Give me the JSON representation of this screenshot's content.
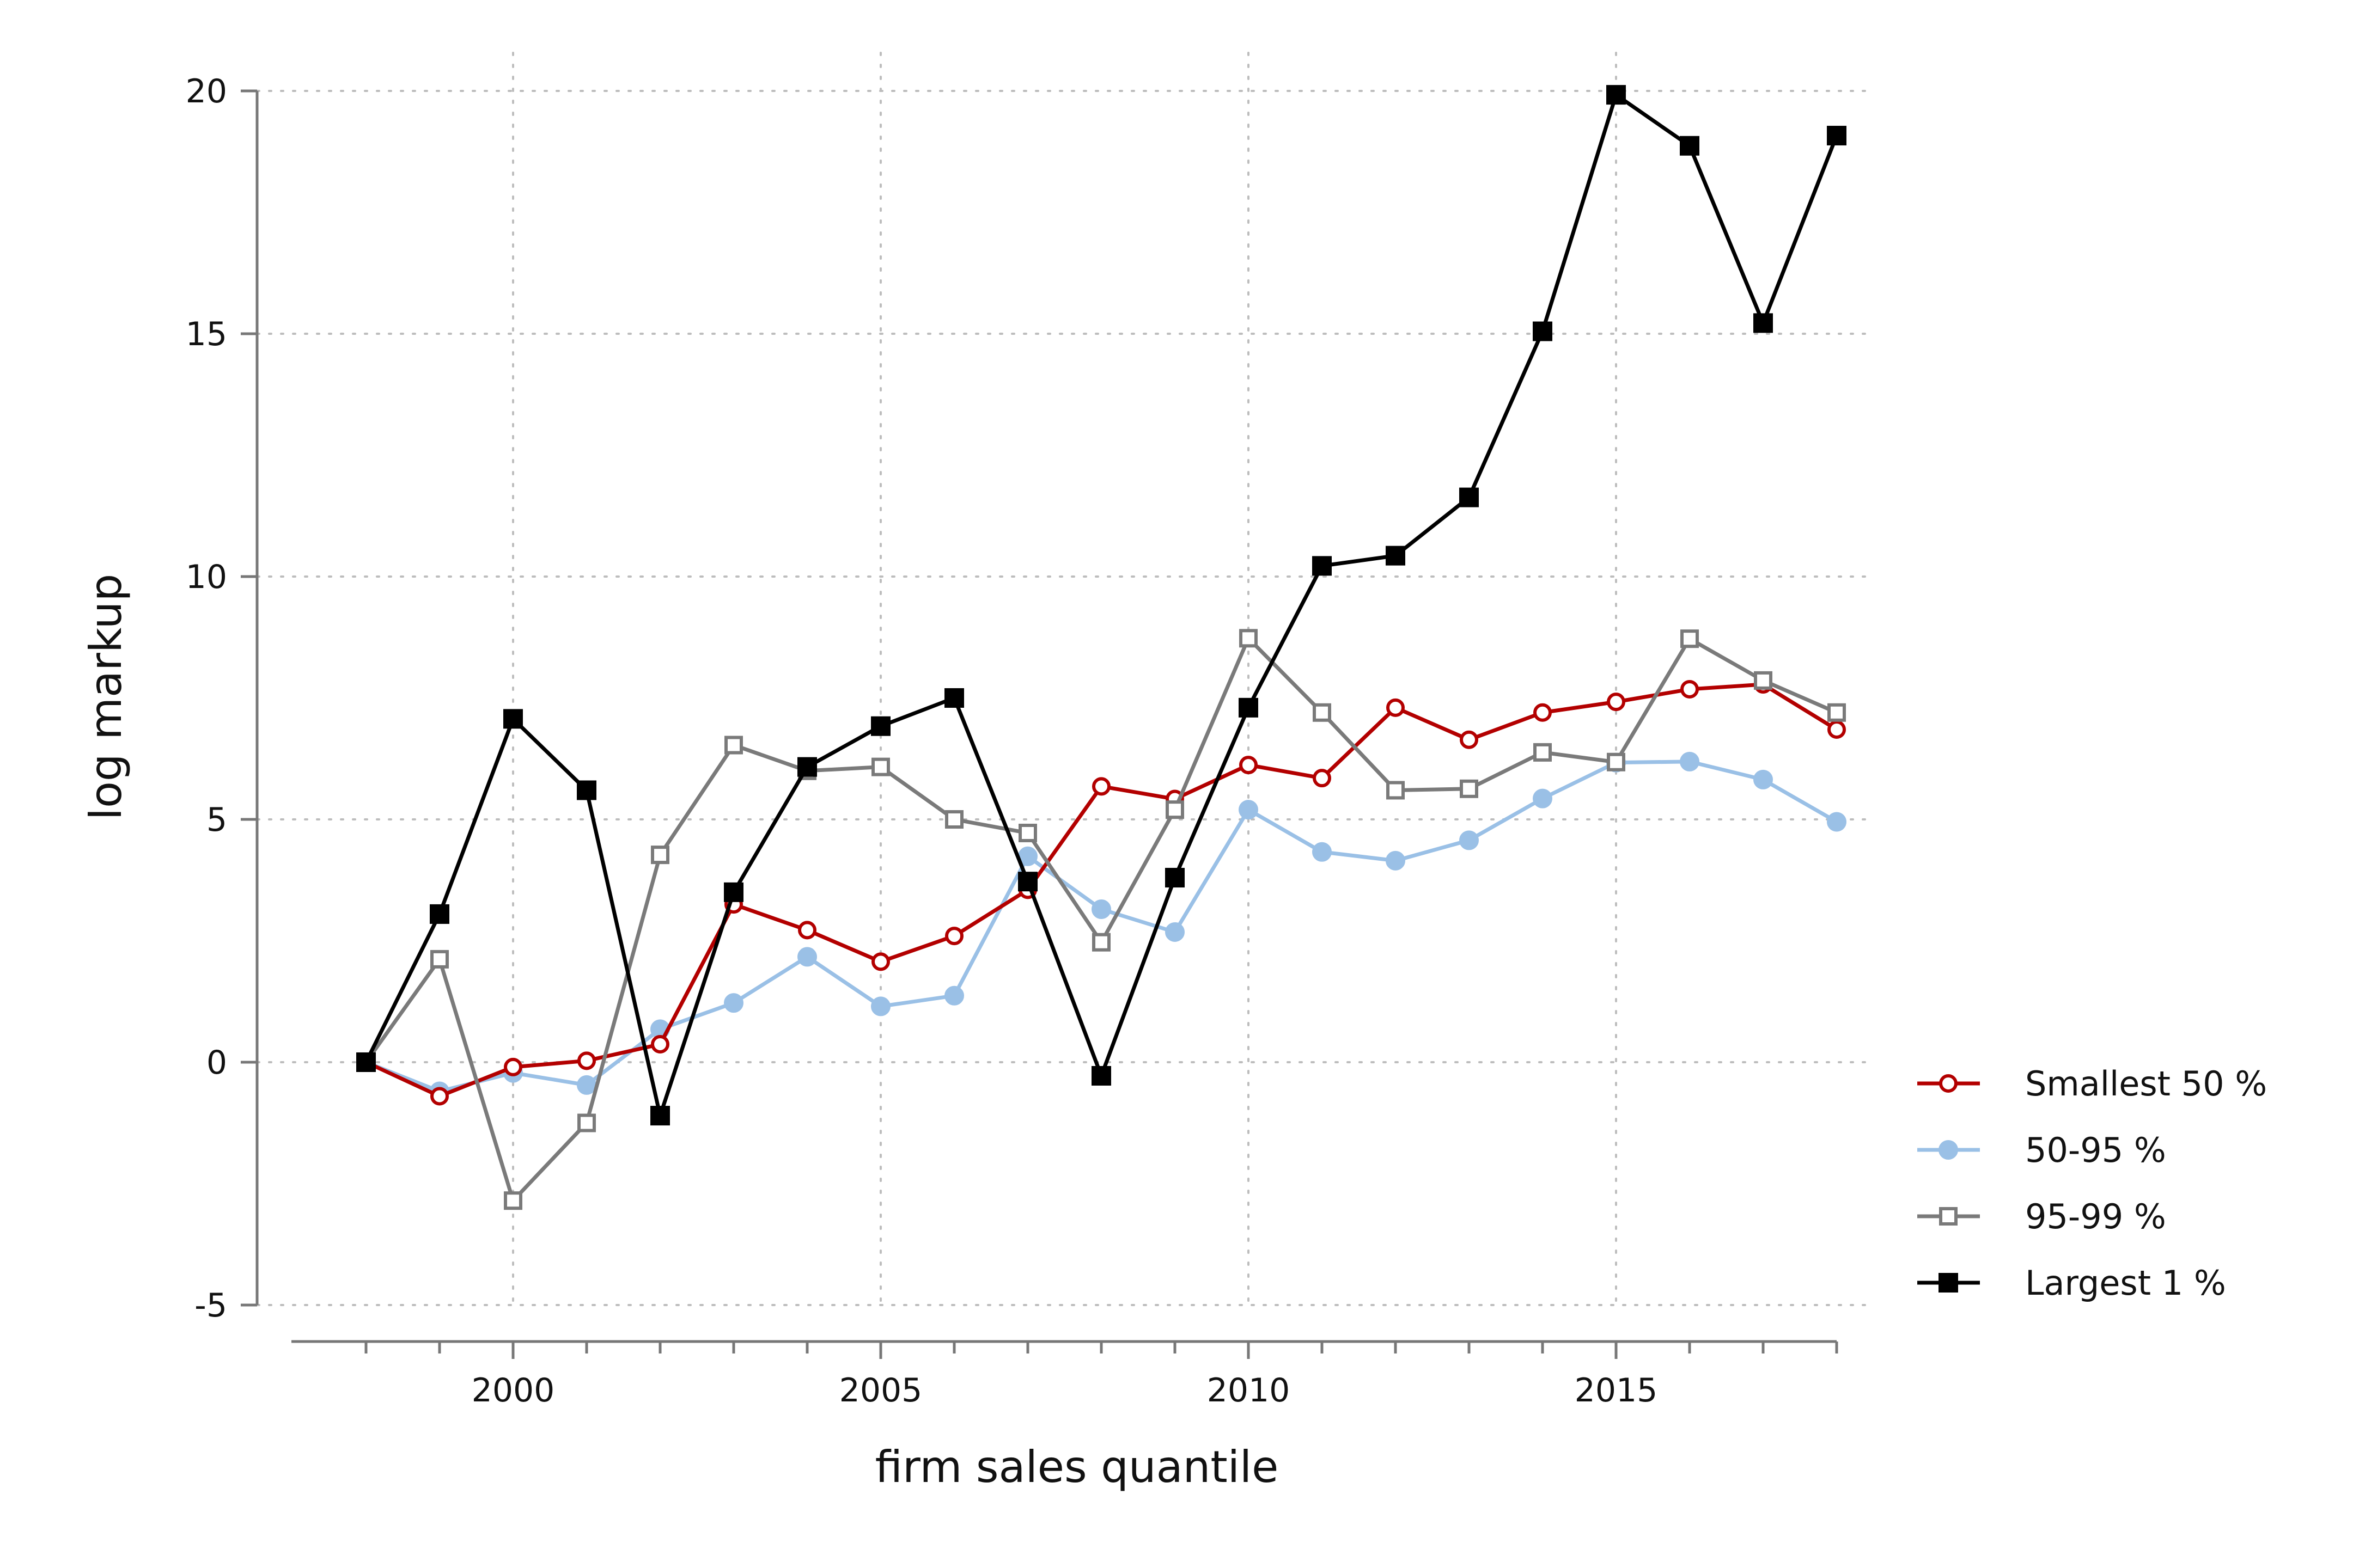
{
  "chart_data": {
    "type": "line",
    "title": "",
    "xlabel": "firm sales quantile",
    "ylabel": "log markup",
    "x": [
      1998,
      1999,
      2000,
      2001,
      2002,
      2003,
      2004,
      2005,
      2006,
      2007,
      2008,
      2009,
      2010,
      2011,
      2012,
      2013,
      2014,
      2015,
      2016,
      2017,
      2018
    ],
    "xlim": [
      1997,
      2018.3
    ],
    "ylim": [
      -5,
      20
    ],
    "xticks": [
      2000,
      2005,
      2010,
      2015
    ],
    "xtick_labels": [
      "2000",
      "2005",
      "2010",
      "2015"
    ],
    "xminor_ticks": [
      1998,
      1999,
      2000,
      2001,
      2002,
      2003,
      2004,
      2005,
      2006,
      2007,
      2008,
      2009,
      2010,
      2011,
      2012,
      2013,
      2014,
      2015,
      2016,
      2017,
      2018
    ],
    "yticks": [
      -5,
      0,
      5,
      10,
      15,
      20
    ],
    "ytick_labels": [
      "-5",
      "0",
      "5",
      "10",
      "15",
      "20"
    ],
    "grid": true,
    "legend_position": "right",
    "series": [
      {
        "name": "Smallest 50 %",
        "color": "#b30000",
        "marker": "hollow-circle",
        "values": [
          0,
          -0.7,
          -0.1,
          0.03,
          0.37,
          3.25,
          2.72,
          2.07,
          2.6,
          3.55,
          5.68,
          5.42,
          6.12,
          5.85,
          7.3,
          6.64,
          7.2,
          7.42,
          7.68,
          7.78,
          6.85
        ]
      },
      {
        "name": "50-95 %",
        "color": "#9ac0e6",
        "marker": "filled-circle",
        "values": [
          0,
          -0.6,
          -0.22,
          -0.47,
          0.68,
          1.22,
          2.17,
          1.15,
          1.37,
          4.24,
          3.15,
          2.68,
          5.2,
          4.33,
          4.15,
          4.57,
          5.43,
          6.17,
          6.19,
          5.82,
          4.95
        ]
      },
      {
        "name": "95-99 %",
        "color": "#7a7a7a",
        "marker": "hollow-square",
        "values": [
          0,
          2.12,
          -2.85,
          -1.25,
          4.27,
          6.53,
          6.0,
          6.08,
          5.0,
          4.72,
          2.47,
          5.2,
          8.73,
          7.2,
          5.6,
          5.63,
          6.38,
          6.18,
          8.72,
          7.86,
          7.2
        ]
      },
      {
        "name": "Largest 1 %",
        "color": "#000000",
        "marker": "filled-square",
        "values": [
          0,
          3.05,
          7.07,
          5.6,
          -1.1,
          3.5,
          6.08,
          6.92,
          7.5,
          3.72,
          -0.28,
          3.8,
          7.3,
          10.22,
          10.43,
          11.63,
          15.05,
          19.92,
          18.87,
          15.22,
          19.08
        ]
      }
    ]
  }
}
